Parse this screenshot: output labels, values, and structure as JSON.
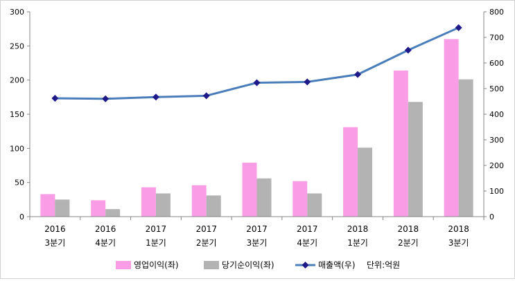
{
  "chart_data": {
    "type": "bar+line",
    "categories": [
      [
        "2016",
        "3분기"
      ],
      [
        "2016",
        "4분기"
      ],
      [
        "2017",
        "1분기"
      ],
      [
        "2017",
        "2분기"
      ],
      [
        "2017",
        "3분기"
      ],
      [
        "2017",
        "4분기"
      ],
      [
        "2018",
        "1분기"
      ],
      [
        "2018",
        "2분기"
      ],
      [
        "2018",
        "3분기"
      ]
    ],
    "series": [
      {
        "name": "영업이익(좌)",
        "type": "bar",
        "axis": "left",
        "color": "#f99ee6",
        "values": [
          33,
          24,
          43,
          46,
          79,
          52,
          131,
          214,
          260
        ]
      },
      {
        "name": "당기순이익(좌)",
        "type": "bar",
        "axis": "left",
        "color": "#b3b3b3",
        "values": [
          25,
          11,
          34,
          31,
          56,
          34,
          101,
          168,
          201
        ]
      },
      {
        "name": "매출액(우)",
        "type": "line",
        "axis": "right",
        "color": "#4a7ebb",
        "marker_color": "#1f1a8a",
        "values": [
          462,
          460,
          467,
          472,
          523,
          526,
          555,
          650,
          738
        ]
      }
    ],
    "y_left": {
      "min": 0,
      "max": 300,
      "step": 50,
      "ticks": [
        "0",
        "50",
        "100",
        "150",
        "200",
        "250",
        "300"
      ]
    },
    "y_right": {
      "min": 0,
      "max": 800,
      "step": 100,
      "ticks": [
        "0",
        "100",
        "200",
        "300",
        "400",
        "500",
        "600",
        "700",
        "800"
      ]
    },
    "unit_note": "단위:억원",
    "legend_position": "bottom",
    "grid": false
  }
}
